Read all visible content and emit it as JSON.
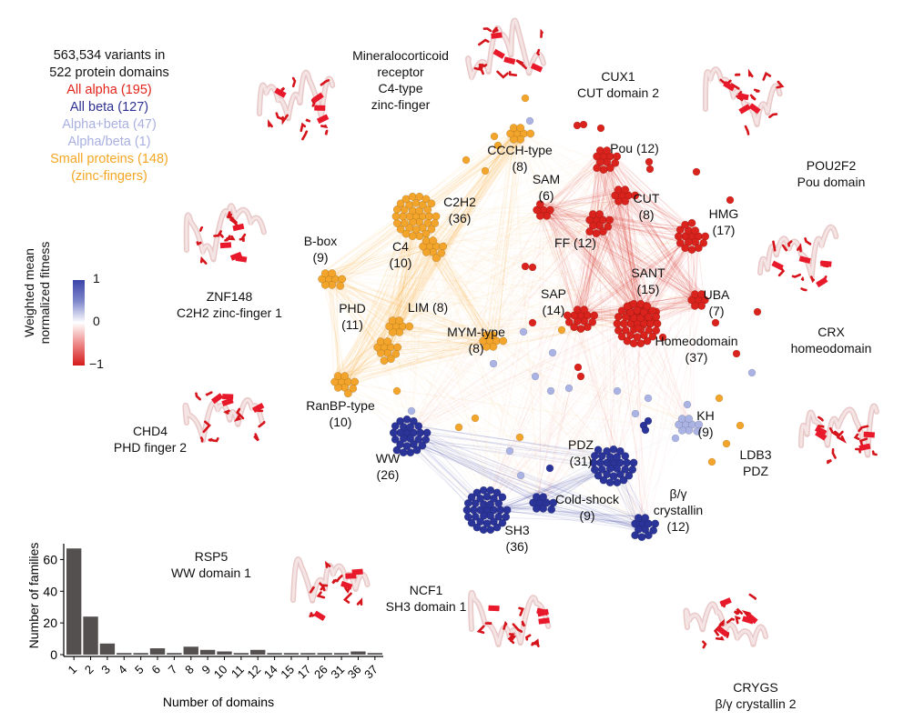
{
  "legend": {
    "line1": "563,534 variants in",
    "line2": "522 protein domains",
    "classes": [
      {
        "label": "All alpha (195)",
        "color": "#e2231a"
      },
      {
        "label": "All beta (127)",
        "color": "#2e3192"
      },
      {
        "label": "Alpha+beta (47)",
        "color": "#a9b0e0"
      },
      {
        "label": "Alpha/beta (1)",
        "color": "#a9b0e0"
      },
      {
        "label": "Small proteins (148)",
        "color": "#f5a623"
      },
      {
        "label": "(zinc-fingers)",
        "color": "#f5a623"
      }
    ]
  },
  "colorbar": {
    "title_line1": "Weighted mean",
    "title_line2": "normalized fitness",
    "ticks": [
      "1",
      "0",
      "−1"
    ],
    "colors": {
      "high": "#3b44a8",
      "mid": "#ffffff",
      "low": "#d41a1a"
    }
  },
  "class_colors": {
    "alpha": "#d9231c",
    "beta": "#2b3499",
    "alphabeta": "#aab3e3",
    "small": "#f3a52b"
  },
  "network": {
    "clusters": [
      {
        "name": "CCCH-type",
        "count": 8,
        "class": "small",
        "label": "CCCH-type",
        "sub": "(8)"
      },
      {
        "name": "C2H2",
        "count": 36,
        "class": "small",
        "label": "C2H2",
        "sub": "(36)"
      },
      {
        "name": "C4",
        "count": 10,
        "class": "small",
        "label": "C4",
        "sub": "(10)"
      },
      {
        "name": "B-box",
        "count": 9,
        "class": "small",
        "label": "B-box",
        "sub": "(9)"
      },
      {
        "name": "LIM",
        "count": 8,
        "class": "small",
        "label": "LIM (8)",
        "sub": ""
      },
      {
        "name": "PHD",
        "count": 11,
        "class": "small",
        "label": "PHD",
        "sub": "(11)"
      },
      {
        "name": "RanBP-type",
        "count": 10,
        "class": "small",
        "label": "RanBP-type",
        "sub": "(10)"
      },
      {
        "name": "MYM-type",
        "count": 8,
        "class": "small",
        "label": "MYM-type",
        "sub": "(8)"
      },
      {
        "name": "Pou",
        "count": 12,
        "class": "alpha",
        "label": "Pou (12)",
        "sub": ""
      },
      {
        "name": "SAM",
        "count": 6,
        "class": "alpha",
        "label": "SAM",
        "sub": "(6)"
      },
      {
        "name": "CUT",
        "count": 8,
        "class": "alpha",
        "label": "CUT",
        "sub": "(8)"
      },
      {
        "name": "HMG",
        "count": 17,
        "class": "alpha",
        "label": "HMG",
        "sub": "(17)"
      },
      {
        "name": "FF",
        "count": 12,
        "class": "alpha",
        "label": "FF (12)",
        "sub": ""
      },
      {
        "name": "SANT",
        "count": 15,
        "class": "alpha",
        "label": "SANT",
        "sub": "(15)"
      },
      {
        "name": "UBA",
        "count": 7,
        "class": "alpha",
        "label": "UBA",
        "sub": "(7)"
      },
      {
        "name": "SAP",
        "count": 14,
        "class": "alpha",
        "label": "SAP",
        "sub": "(14)"
      },
      {
        "name": "Homeodomain",
        "count": 37,
        "class": "alpha",
        "label": "Homeodomain",
        "sub": "(37)"
      },
      {
        "name": "KH",
        "count": 9,
        "class": "alphabeta",
        "label": "KH",
        "sub": "(9)"
      },
      {
        "name": "WW",
        "count": 26,
        "class": "beta",
        "label": "WW",
        "sub": "(26)"
      },
      {
        "name": "PDZ",
        "count": 31,
        "class": "beta",
        "label": "PDZ",
        "sub": "(31)"
      },
      {
        "name": "SH3",
        "count": 36,
        "class": "beta",
        "label": "SH3",
        "sub": "(36)"
      },
      {
        "name": "Cold-shock",
        "count": 9,
        "class": "beta",
        "label": "Cold-shock",
        "sub": "(9)"
      },
      {
        "name": "beta-gamma-crystallin",
        "count": 12,
        "class": "beta",
        "label": "β/γ",
        "sub": "crystallin",
        "sub2": "(12)"
      }
    ]
  },
  "structures": [
    {
      "name": "mineralocorticoid",
      "lines": [
        "Mineralocorticoid",
        "receptor",
        "C4-type",
        "zinc-finger"
      ]
    },
    {
      "name": "cux1",
      "lines": [
        "CUX1",
        "CUT domain 2"
      ]
    },
    {
      "name": "pou2f2",
      "lines": [
        "POU2F2",
        "Pou domain"
      ]
    },
    {
      "name": "crx",
      "lines": [
        "CRX",
        "homeodomain"
      ]
    },
    {
      "name": "znf148",
      "lines": [
        "ZNF148",
        "C2H2 zinc-finger 1"
      ]
    },
    {
      "name": "chd4",
      "lines": [
        "CHD4",
        "PHD finger 2"
      ]
    },
    {
      "name": "ldb3",
      "lines": [
        "LDB3",
        "PDZ"
      ]
    },
    {
      "name": "rsp5",
      "lines": [
        "RSP5",
        "WW domain 1"
      ]
    },
    {
      "name": "ncf1",
      "lines": [
        "NCF1",
        "SH3 domain 1"
      ]
    },
    {
      "name": "crygs",
      "lines": [
        "CRYGS",
        "β/γ crystallin 2"
      ]
    }
  ],
  "chart_data": {
    "type": "bar",
    "title": "",
    "xlabel": "Number of domains",
    "ylabel": "Number of families",
    "categories": [
      "1",
      "2",
      "3",
      "4",
      "5",
      "6",
      "7",
      "8",
      "9",
      "10",
      "11",
      "12",
      "14",
      "15",
      "17",
      "26",
      "31",
      "36",
      "37"
    ],
    "values": [
      67,
      24,
      7,
      1,
      1,
      4,
      1,
      5,
      3,
      2,
      1,
      3,
      1,
      1,
      1,
      1,
      1,
      2,
      1
    ],
    "ylim": [
      0,
      70
    ],
    "yticks": [
      0,
      20,
      40,
      60
    ],
    "bar_color": "#555050",
    "grid": false
  }
}
